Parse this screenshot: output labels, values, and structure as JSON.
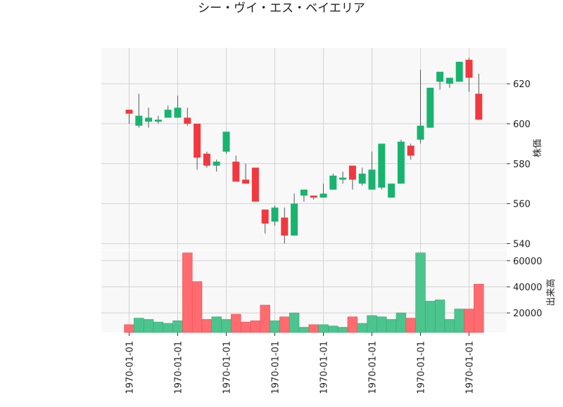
{
  "chart_data": {
    "type": "candlestick",
    "title": "シー・ヴイ・エス・ベイエリア",
    "price_panel": {
      "ylabel": "株価",
      "yticks": [
        540,
        560,
        580,
        600,
        620
      ],
      "ylim": [
        537,
        638
      ]
    },
    "volume_panel": {
      "ylabel": "出来高",
      "yticks": [
        20000,
        40000,
        60000
      ],
      "ytick_labels": [
        "20000",
        "40000",
        "60000"
      ],
      "ylim": [
        5000,
        68000
      ]
    },
    "xtick_labels": [
      "1970-01-01",
      "1970-01-01",
      "1970-01-01",
      "1970-01-01",
      "1970-01-01",
      "1970-01-01",
      "1970-01-01",
      "1970-01-01"
    ],
    "xtick_index": [
      0,
      5,
      10,
      15,
      20,
      25,
      30,
      35
    ],
    "colors": {
      "up": "#18b46f",
      "down": "#f2383e",
      "up_volume": "#4cc48e",
      "down_volume": "#ff6b6f",
      "wick": "#555555",
      "panel_bg": "#f8f8f8",
      "grid": "#d2d2d2"
    },
    "candles": [
      {
        "open": 607,
        "high": 607,
        "low": 600,
        "close": 605,
        "volume": 11000
      },
      {
        "open": 599,
        "high": 615,
        "low": 598,
        "close": 604,
        "volume": 16000
      },
      {
        "open": 601,
        "high": 608,
        "low": 598,
        "close": 603,
        "volume": 15000
      },
      {
        "open": 601,
        "high": 604,
        "low": 600,
        "close": 602,
        "volume": 13000
      },
      {
        "open": 603,
        "high": 609,
        "low": 603,
        "close": 607,
        "volume": 12000
      },
      {
        "open": 603,
        "high": 614,
        "low": 603,
        "close": 608,
        "volume": 14000
      },
      {
        "open": 603,
        "high": 608,
        "low": 599,
        "close": 600,
        "volume": 66000
      },
      {
        "open": 600,
        "high": 600,
        "low": 577,
        "close": 583,
        "volume": 44000
      },
      {
        "open": 585,
        "high": 586,
        "low": 578,
        "close": 579,
        "volume": 15000
      },
      {
        "open": 579,
        "high": 582,
        "low": 576,
        "close": 581,
        "volume": 17000
      },
      {
        "open": 586,
        "high": 596,
        "low": 585,
        "close": 596,
        "volume": 15000
      },
      {
        "open": 581,
        "high": 584,
        "low": 571,
        "close": 571,
        "volume": 19000
      },
      {
        "open": 572,
        "high": 580,
        "low": 570,
        "close": 570,
        "volume": 13000
      },
      {
        "open": 578,
        "high": 578,
        "low": 561,
        "close": 561,
        "volume": 14000
      },
      {
        "open": 557,
        "high": 557,
        "low": 545,
        "close": 550,
        "volume": 26000
      },
      {
        "open": 551,
        "high": 559,
        "low": 549,
        "close": 558,
        "volume": 14000
      },
      {
        "open": 553,
        "high": 558,
        "low": 540,
        "close": 544,
        "volume": 17000
      },
      {
        "open": 544,
        "high": 565,
        "low": 544,
        "close": 560,
        "volume": 20000
      },
      {
        "open": 564,
        "high": 567,
        "low": 561,
        "close": 567,
        "volume": 9000
      },
      {
        "open": 564,
        "high": 564,
        "low": 562,
        "close": 563,
        "volume": 11000
      },
      {
        "open": 563,
        "high": 570,
        "low": 563,
        "close": 565,
        "volume": 11000
      },
      {
        "open": 567,
        "high": 575,
        "low": 567,
        "close": 574,
        "volume": 10000
      },
      {
        "open": 572,
        "high": 576,
        "low": 570,
        "close": 573,
        "volume": 9000
      },
      {
        "open": 579,
        "high": 579,
        "low": 567,
        "close": 572,
        "volume": 17000
      },
      {
        "open": 570,
        "high": 578,
        "low": 569,
        "close": 575,
        "volume": 12000
      },
      {
        "open": 567,
        "high": 586,
        "low": 567,
        "close": 577,
        "volume": 18000
      },
      {
        "open": 568,
        "high": 590,
        "low": 567,
        "close": 590,
        "volume": 17000
      },
      {
        "open": 563,
        "high": 570,
        "low": 563,
        "close": 570,
        "volume": 15000
      },
      {
        "open": 570,
        "high": 592,
        "low": 570,
        "close": 591,
        "volume": 20000
      },
      {
        "open": 589,
        "high": 590,
        "low": 582,
        "close": 584,
        "volume": 16000
      },
      {
        "open": 592,
        "high": 627,
        "low": 590,
        "close": 599,
        "volume": 66000
      },
      {
        "open": 598,
        "high": 618,
        "low": 598,
        "close": 618,
        "volume": 29000
      },
      {
        "open": 621,
        "high": 626,
        "low": 617,
        "close": 626,
        "volume": 30000
      },
      {
        "open": 620,
        "high": 623,
        "low": 618,
        "close": 623,
        "volume": 15000
      },
      {
        "open": 621,
        "high": 631,
        "low": 621,
        "close": 631,
        "volume": 23000
      },
      {
        "open": 632,
        "high": 633,
        "low": 616,
        "close": 623,
        "volume": 23000
      },
      {
        "open": 615,
        "high": 625,
        "low": 602,
        "close": 602,
        "volume": 42000
      }
    ]
  }
}
